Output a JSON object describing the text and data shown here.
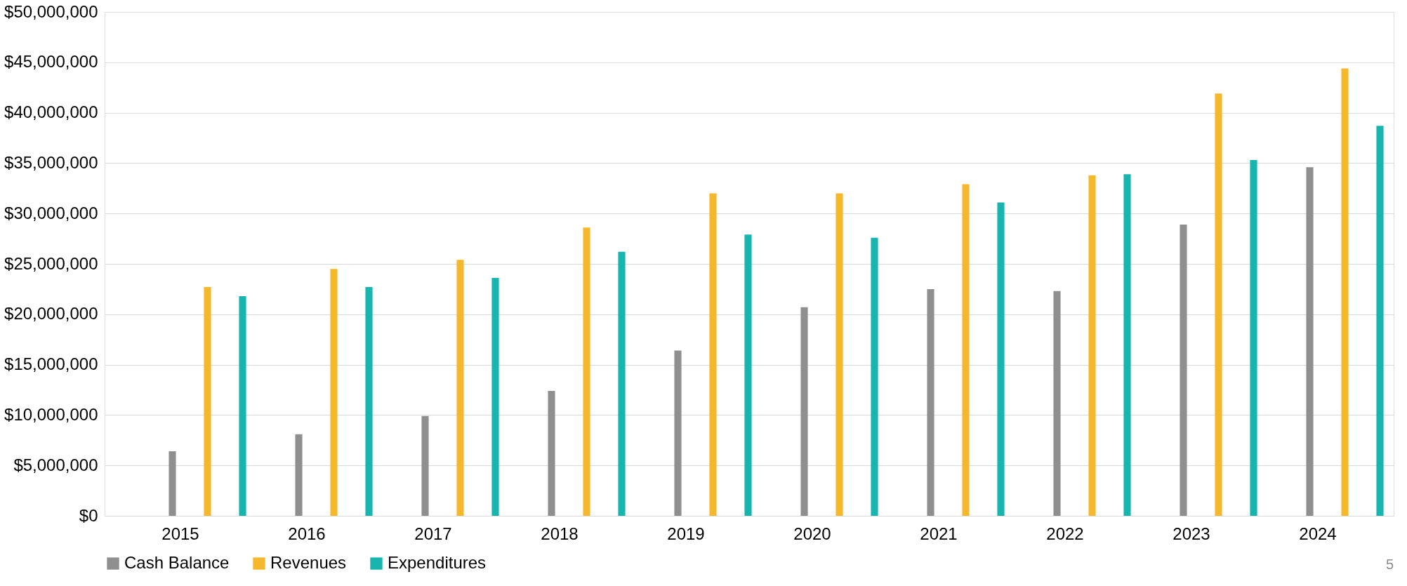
{
  "chart_data": {
    "type": "bar",
    "categories": [
      "2015",
      "2016",
      "2017",
      "2018",
      "2019",
      "2020",
      "2021",
      "2022",
      "2023",
      "2024"
    ],
    "series": [
      {
        "name": "Cash Balance",
        "color": "#8f8f8f",
        "values": [
          6400000,
          8100000,
          9900000,
          12400000,
          16400000,
          20700000,
          22500000,
          22300000,
          28900000,
          34600000
        ]
      },
      {
        "name": "Revenues",
        "color": "#f5b72c",
        "values": [
          22700000,
          24500000,
          25400000,
          28600000,
          32000000,
          32000000,
          32900000,
          33800000,
          41900000,
          44400000
        ]
      },
      {
        "name": "Expenditures",
        "color": "#17b5ad",
        "values": [
          21800000,
          22700000,
          23600000,
          26200000,
          27900000,
          27600000,
          31100000,
          33900000,
          35300000,
          38700000
        ]
      }
    ],
    "ylim": [
      0,
      50000000
    ],
    "yticks": [
      {
        "value": 0,
        "label": "$0"
      },
      {
        "value": 5000000,
        "label": "$5,000,000"
      },
      {
        "value": 10000000,
        "label": "$10,000,000"
      },
      {
        "value": 15000000,
        "label": "$15,000,000"
      },
      {
        "value": 20000000,
        "label": "$20,000,000"
      },
      {
        "value": 25000000,
        "label": "$25,000,000"
      },
      {
        "value": 30000000,
        "label": "$30,000,000"
      },
      {
        "value": 35000000,
        "label": "$35,000,000"
      },
      {
        "value": 40000000,
        "label": "$40,000,000"
      },
      {
        "value": 45000000,
        "label": "$45,000,000"
      },
      {
        "value": 50000000,
        "label": "$50,000,000"
      }
    ],
    "grid": "y",
    "legend": "bottom",
    "annotations": [
      "5"
    ]
  }
}
